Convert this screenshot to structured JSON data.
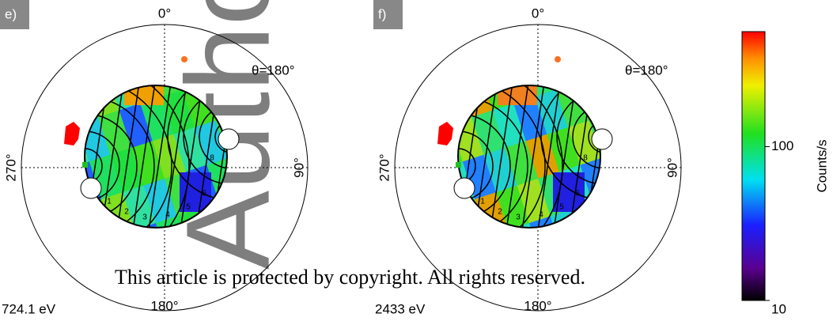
{
  "chart_data": [
    {
      "type": "polar",
      "panel_label": "e)",
      "energy": "724.1 eV",
      "theta_label": "θ=180°",
      "angle_labels": [
        "0°",
        "90°",
        "180°",
        "270°"
      ],
      "sector_labels": [
        "1",
        "2",
        "3",
        "4",
        "5",
        "6",
        "8"
      ]
    },
    {
      "type": "polar",
      "panel_label": "f)",
      "energy": "2433 eV",
      "theta_label": "θ=180°",
      "angle_labels": [
        "0°",
        "90°",
        "180°",
        "270°"
      ],
      "sector_labels": [
        "1",
        "2",
        "3",
        "4",
        "5",
        "6",
        "8"
      ]
    },
    {
      "type": "colorbar",
      "label": "Counts/s",
      "log": true,
      "ylim": [
        10,
        560
      ],
      "yticks": [
        10,
        100
      ]
    }
  ],
  "watermark": "This article is protected by copyright. All rights reserved.",
  "watermark_big": "Author"
}
